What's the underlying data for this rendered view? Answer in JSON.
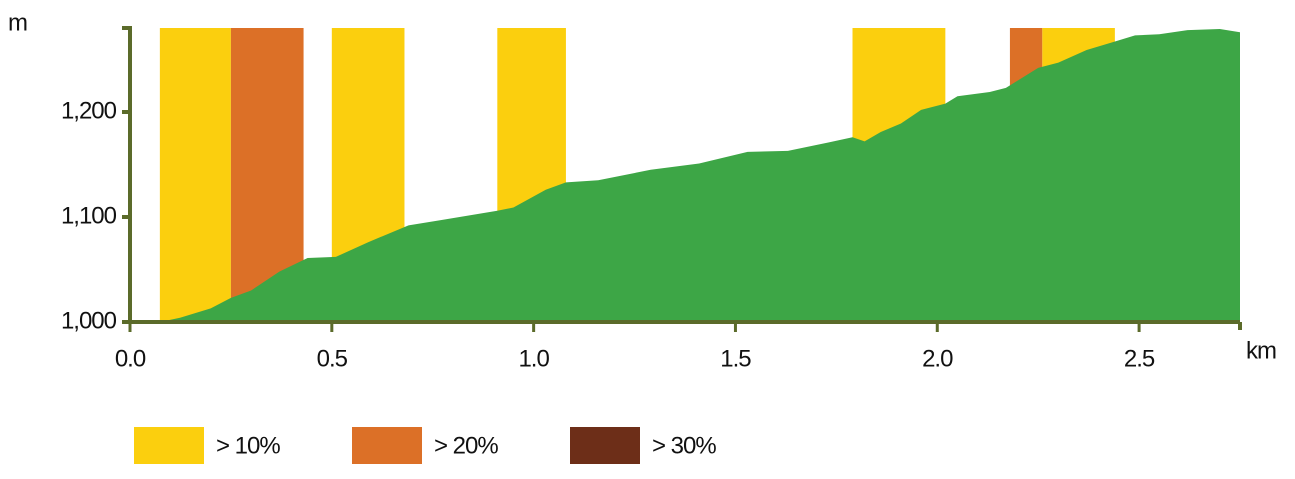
{
  "chart_data": {
    "type": "area",
    "y_label": "m",
    "x_label": "km",
    "color": "#3da646",
    "xlim": [
      0,
      2.75
    ],
    "ylim": [
      1000,
      1280
    ],
    "xticks": [
      {
        "value": 0,
        "label": "0.0"
      },
      {
        "value": 0.5,
        "label": "0.5"
      },
      {
        "value": 1,
        "label": "1.0"
      },
      {
        "value": 1.5,
        "label": "1.5"
      },
      {
        "value": 2,
        "label": "2.0"
      },
      {
        "value": 2.5,
        "label": "2.5"
      }
    ],
    "yticks": [
      {
        "value": 1000,
        "label": "1,000"
      },
      {
        "value": 1100,
        "label": "1,100"
      },
      {
        "value": 1200,
        "label": "1,200"
      }
    ],
    "x": [
      0,
      0.074,
      0.124,
      0.2,
      0.25,
      0.3,
      0.37,
      0.44,
      0.51,
      0.59,
      0.69,
      0.77,
      0.91,
      0.95,
      1.03,
      1.08,
      1.16,
      1.29,
      1.41,
      1.53,
      1.63,
      1.73,
      1.79,
      1.82,
      1.86,
      1.91,
      1.96,
      2.02,
      2.05,
      2.13,
      2.17,
      2.25,
      2.3,
      2.37,
      2.43,
      2.49,
      2.55,
      2.62,
      2.7,
      2.75
    ],
    "values": [
      1000,
      1000,
      1004,
      1013,
      1023,
      1030,
      1048,
      1061,
      1062,
      1076,
      1092,
      1097,
      1106,
      1109,
      1126,
      1133,
      1135,
      1145,
      1151,
      1162,
      1163,
      1171,
      1176,
      1172,
      1181,
      1189,
      1202,
      1208,
      1215,
      1219,
      1223,
      1242,
      1247,
      1259,
      1266,
      1273,
      1274,
      1278,
      1279,
      1276
    ],
    "series": [
      {
        "name": "> 10%",
        "color": "#fbcf0e",
        "ranges": [
          [
            0.074,
            0.25
          ],
          [
            0.5,
            0.68
          ],
          [
            0.91,
            1.08
          ],
          [
            1.79,
            2.02
          ],
          [
            2.26,
            2.44
          ]
        ]
      },
      {
        "name": "> 20%",
        "color": "#dc7027",
        "ranges": [
          [
            0.25,
            0.43
          ],
          [
            2.18,
            2.26
          ]
        ]
      },
      {
        "name": "> 30%",
        "color": "#6d2e18",
        "ranges": []
      }
    ]
  }
}
